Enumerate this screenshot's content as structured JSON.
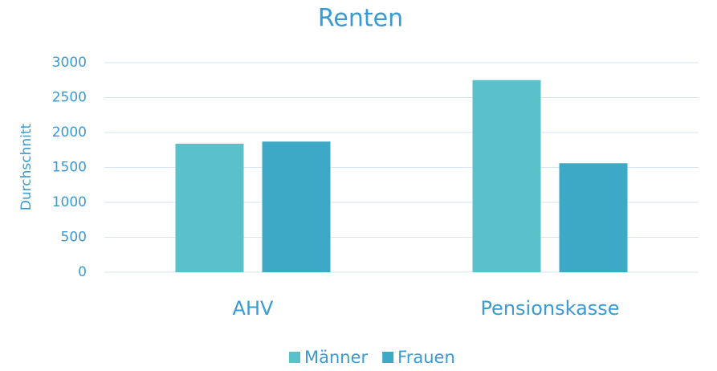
{
  "chart_data": {
    "type": "bar",
    "title": "Renten",
    "y_label": "Durchschnitt",
    "categories": [
      "AHV",
      "Pensionskasse"
    ],
    "series": [
      {
        "name": "Männer",
        "color": "#5ac0c9",
        "values": [
          1840,
          2750
        ]
      },
      {
        "name": "Frauen",
        "color": "#3ea9c7",
        "values": [
          1870,
          1560
        ]
      }
    ],
    "ylim": [
      0,
      3000
    ],
    "yticks": [
      0,
      500,
      1000,
      1500,
      2000,
      2500,
      3000
    ],
    "grid": true,
    "legend": "bottom"
  }
}
